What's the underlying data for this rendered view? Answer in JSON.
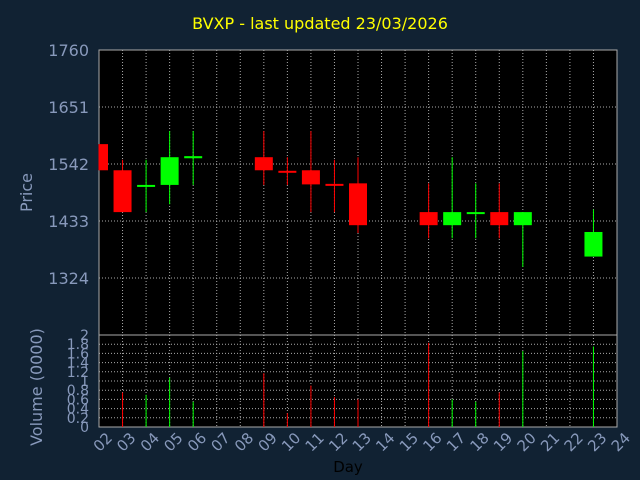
{
  "chart_data": {
    "type": "candlestick",
    "title": "BVXP - last updated 23/03/2026",
    "xlabel": "Day",
    "colors": {
      "background": "#112233",
      "panel": "#000000",
      "grid": "#aaaaaa",
      "text": "#8899bb",
      "title": "#ffff00",
      "up": "#00ff00",
      "down": "#ff0000"
    },
    "x_ticks": [
      "02",
      "03",
      "04",
      "05",
      "06",
      "07",
      "08",
      "09",
      "10",
      "11",
      "12",
      "13",
      "14",
      "15",
      "16",
      "17",
      "18",
      "19",
      "20",
      "21",
      "22",
      "23",
      "24"
    ],
    "price": {
      "ylabel": "Price",
      "ylim": [
        1215,
        1760
      ],
      "yticks": [
        "1760",
        "1651",
        "1542",
        "1433",
        "1324"
      ],
      "candles": [
        {
          "day": "02",
          "open": 1580,
          "high": 1580,
          "low": 1530,
          "close": 1530
        },
        {
          "day": "03",
          "open": 1530,
          "high": 1550,
          "low": 1450,
          "close": 1450
        },
        {
          "day": "04",
          "open": 1500,
          "high": 1550,
          "low": 1450,
          "close": 1502
        },
        {
          "day": "05",
          "open": 1502,
          "high": 1605,
          "low": 1465,
          "close": 1555
        },
        {
          "day": "06",
          "open": 1553,
          "high": 1605,
          "low": 1502,
          "close": 1557
        },
        {
          "day": "09",
          "open": 1555,
          "high": 1605,
          "low": 1502,
          "close": 1530
        },
        {
          "day": "10",
          "open": 1529,
          "high": 1555,
          "low": 1502,
          "close": 1526
        },
        {
          "day": "11",
          "open": 1530,
          "high": 1605,
          "low": 1450,
          "close": 1503
        },
        {
          "day": "12",
          "open": 1504,
          "high": 1550,
          "low": 1450,
          "close": 1502
        },
        {
          "day": "13",
          "open": 1505,
          "high": 1555,
          "low": 1410,
          "close": 1425
        },
        {
          "day": "16",
          "open": 1450,
          "high": 1505,
          "low": 1400,
          "close": 1425
        },
        {
          "day": "17",
          "open": 1425,
          "high": 1555,
          "low": 1400,
          "close": 1450
        },
        {
          "day": "18",
          "open": 1447,
          "high": 1505,
          "low": 1400,
          "close": 1450
        },
        {
          "day": "19",
          "open": 1450,
          "high": 1505,
          "low": 1400,
          "close": 1425
        },
        {
          "day": "20",
          "open": 1425,
          "high": 1450,
          "low": 1345,
          "close": 1450
        },
        {
          "day": "23",
          "open": 1365,
          "high": 1455,
          "low": 1365,
          "close": 1412
        }
      ]
    },
    "volume": {
      "ylabel": "Volume (0000)",
      "ylim": [
        0,
        2
      ],
      "yticks": [
        "2",
        "1.8",
        "1.6",
        "1.4",
        "1.2",
        "1",
        "0.8",
        "0.6",
        "0.4",
        "0.2",
        "0"
      ],
      "bars": [
        {
          "day": "03",
          "value": 0.75
        },
        {
          "day": "04",
          "value": 0.7
        },
        {
          "day": "05",
          "value": 1.07
        },
        {
          "day": "06",
          "value": 0.55
        },
        {
          "day": "09",
          "value": 1.17
        },
        {
          "day": "10",
          "value": 0.3
        },
        {
          "day": "11",
          "value": 0.9
        },
        {
          "day": "12",
          "value": 0.65
        },
        {
          "day": "13",
          "value": 0.6
        },
        {
          "day": "16",
          "value": 1.83
        },
        {
          "day": "17",
          "value": 0.6
        },
        {
          "day": "18",
          "value": 0.55
        },
        {
          "day": "19",
          "value": 0.75
        },
        {
          "day": "20",
          "value": 1.65
        },
        {
          "day": "23",
          "value": 1.75
        }
      ]
    }
  }
}
